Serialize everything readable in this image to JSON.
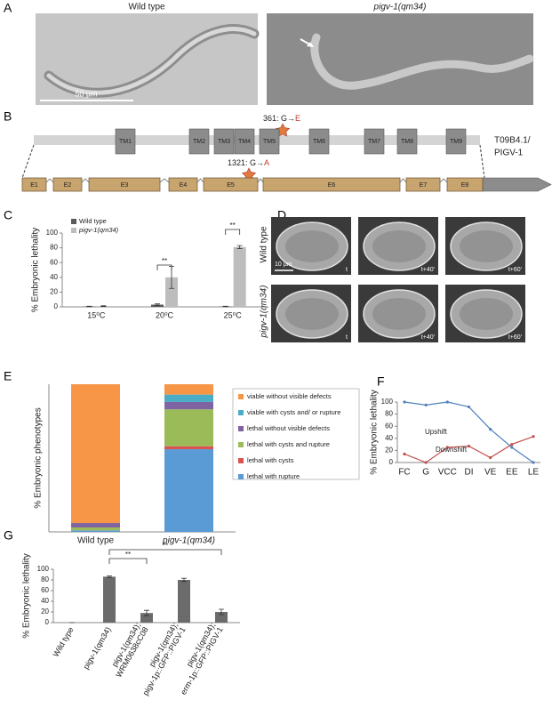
{
  "panel_labels": [
    "A",
    "B",
    "C",
    "D",
    "E",
    "F",
    "G"
  ],
  "panel_a": {
    "images": [
      "Wild type",
      "pigv-1(qm34)"
    ],
    "scale_bar": "50 µm"
  },
  "panel_b": {
    "transmembrane": [
      "TM1",
      "TM2",
      "TM3",
      "TM4",
      "TM5",
      "TM6",
      "TM7",
      "TM8",
      "TM9"
    ],
    "protein_mutation": {
      "from": "361: G→",
      "to": "E"
    },
    "dna_mutation": {
      "from": "1321: G→",
      "to": "A"
    },
    "gene_name": [
      "T09B4.1/",
      "PIGV-1"
    ],
    "exons": [
      "E1",
      "E2",
      "E3",
      "E4",
      "E5",
      "E6",
      "E7",
      "E8"
    ]
  },
  "panel_d": {
    "rows": [
      "Wild type",
      "pigv-1(qm34)"
    ],
    "scale_bar": "10 µm",
    "times": [
      [
        "t",
        "t+40'",
        "t+60'"
      ],
      [
        "t",
        "t+40'",
        "t+60'"
      ]
    ]
  },
  "chart_data": [
    {
      "type": "bar",
      "ylabel": "% Embryonic lethality",
      "categories": [
        "15⁰C",
        "20⁰C",
        "25⁰C"
      ],
      "series": [
        {
          "name": "Wild type",
          "color": "#5a5a5a",
          "values": [
            0.5,
            3,
            0.5
          ],
          "errors": [
            0.3,
            1,
            0.3
          ]
        },
        {
          "name": "pigv-1(qm34)",
          "color": "#bdbdbd",
          "values": [
            1,
            40,
            81
          ],
          "errors": [
            0.5,
            15,
            2
          ]
        }
      ],
      "ylim": [
        0,
        100
      ],
      "yticks": [
        0,
        20,
        40,
        60,
        80,
        100
      ],
      "annotations": [
        "**",
        "**"
      ]
    },
    {
      "type": "stacked_bar",
      "ylabel": "% Embryonic phenotypes",
      "categories": [
        "Wild type",
        "pigv-1(qm34)"
      ],
      "series": [
        {
          "name": "lethal with rupture",
          "color": "#5b9bd5",
          "values": [
            1,
            56
          ]
        },
        {
          "name": "lethal with cysts",
          "color": "#d9534f",
          "values": [
            0,
            2
          ]
        },
        {
          "name": "lethal with cysts and rupture",
          "color": "#9bbb59",
          "values": [
            2,
            25
          ]
        },
        {
          "name": "lethal without visible defects",
          "color": "#8064a2",
          "values": [
            3,
            5
          ]
        },
        {
          "name": "viable with cysts and/ or rupture",
          "color": "#4bacc6",
          "values": [
            0,
            5
          ]
        },
        {
          "name": "viable without visible defects",
          "color": "#f79646",
          "values": [
            94,
            7
          ]
        }
      ],
      "ylim": [
        0,
        100
      ]
    },
    {
      "type": "line",
      "ylabel": "% Embryonic lethality",
      "categories": [
        "FC",
        "G",
        "VCC",
        "DI",
        "VE",
        "EE",
        "LE"
      ],
      "series": [
        {
          "name": "Upshift",
          "color": "#4f81bd",
          "values": [
            100,
            95,
            100,
            92,
            55,
            25,
            0
          ]
        },
        {
          "name": "Downshift",
          "color": "#c0504d",
          "values": [
            14,
            0,
            25,
            27,
            8,
            30,
            43
          ]
        }
      ],
      "ylim": [
        0,
        100
      ],
      "yticks": [
        0,
        20,
        40,
        60,
        80,
        100
      ]
    },
    {
      "type": "bar",
      "ylabel": "% Embryonic lethality",
      "categories": [
        [
          "Wild type"
        ],
        [
          "pigv-1(qm34)"
        ],
        [
          "pigv-1(qm34);",
          "WRM0638cC08"
        ],
        [
          "pigv-1(qm34);",
          "pigv-1p::GFP::PIGV-1"
        ],
        [
          "pigv-1(qm34);",
          "erm-1p::GFP::PIGV-1"
        ]
      ],
      "values": [
        0,
        86,
        18,
        80,
        20
      ],
      "errors": [
        0,
        1.5,
        5,
        3,
        5
      ],
      "color": "#6b6b6b",
      "ylim": [
        0,
        100
      ],
      "yticks": [
        0,
        20,
        40,
        60,
        80,
        100
      ],
      "annotations": [
        "**",
        "**"
      ]
    }
  ]
}
